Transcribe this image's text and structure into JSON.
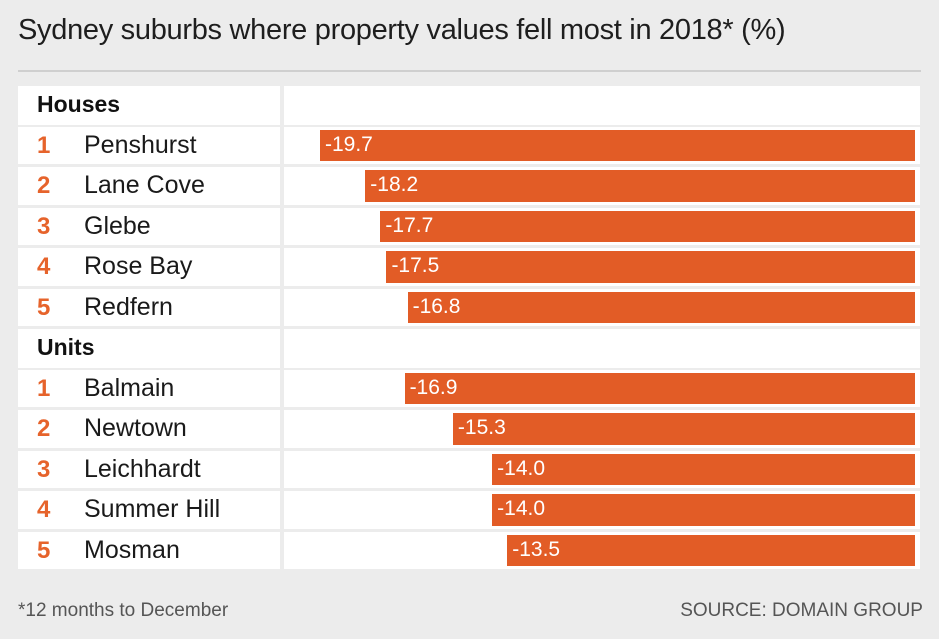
{
  "title": "Sydney suburbs where property values fell most in 2018* (%)",
  "footnote": "*12 months to December",
  "source": "SOURCE: DOMAIN GROUP",
  "colors": {
    "bar": "#e25c26",
    "rank": "#e6632b",
    "background": "#ececec",
    "row": "#ffffff"
  },
  "chart_data": {
    "type": "bar",
    "orientation": "horizontal",
    "title": "Sydney suburbs where property values fell most in 2018* (%)",
    "xlim": [
      -22.0,
      0
    ],
    "groups": [
      {
        "name": "Houses",
        "items": [
          {
            "rank": "1",
            "suburb": "Penshurst",
            "value": -19.7,
            "label": "-19.7"
          },
          {
            "rank": "2",
            "suburb": "Lane Cove",
            "value": -18.2,
            "label": "-18.2"
          },
          {
            "rank": "3",
            "suburb": "Glebe",
            "value": -17.7,
            "label": "-17.7"
          },
          {
            "rank": "4",
            "suburb": "Rose Bay",
            "value": -17.5,
            "label": "-17.5"
          },
          {
            "rank": "5",
            "suburb": "Redfern",
            "value": -16.8,
            "label": "-16.8"
          }
        ]
      },
      {
        "name": "Units",
        "items": [
          {
            "rank": "1",
            "suburb": "Balmain",
            "value": -16.9,
            "label": "-16.9"
          },
          {
            "rank": "2",
            "suburb": "Newtown",
            "value": -15.3,
            "label": "-15.3"
          },
          {
            "rank": "3",
            "suburb": "Leichhardt",
            "value": -14.0,
            "label": "-14.0"
          },
          {
            "rank": "4",
            "suburb": "Summer Hill",
            "value": -14.0,
            "label": "-14.0"
          },
          {
            "rank": "5",
            "suburb": "Mosman",
            "value": -13.5,
            "label": "-13.5"
          }
        ]
      }
    ]
  }
}
